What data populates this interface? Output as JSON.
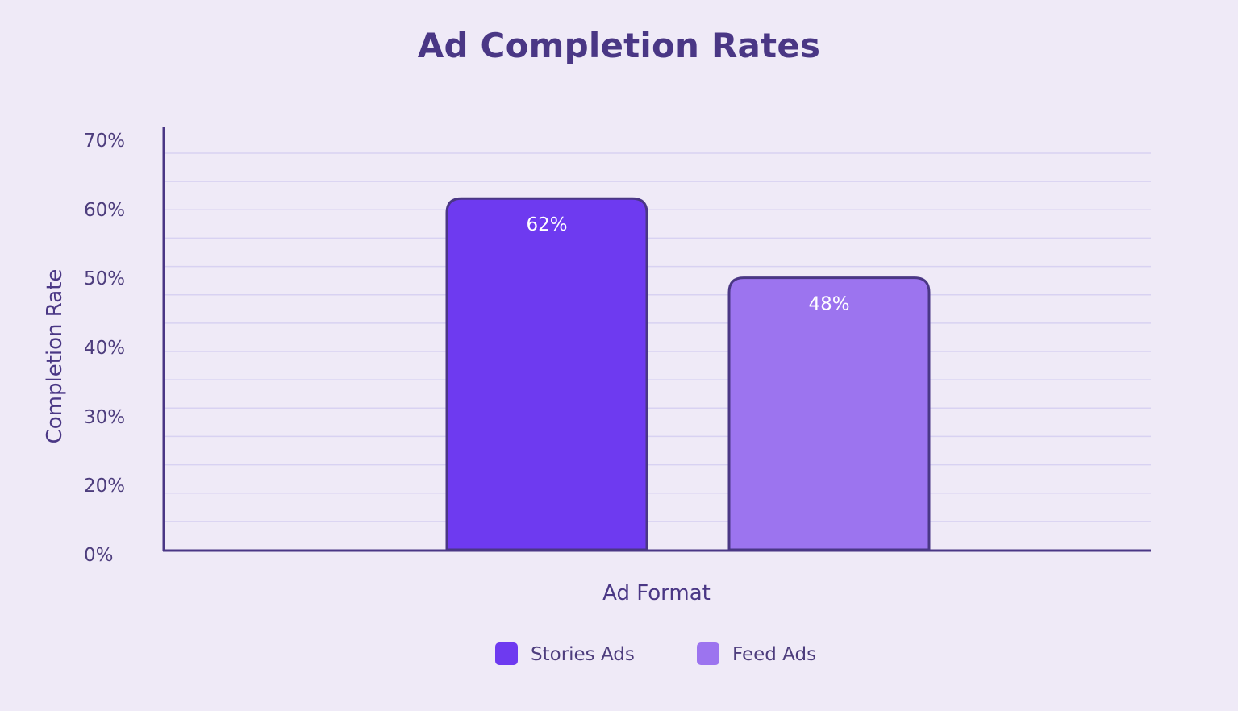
{
  "chart_data": {
    "type": "bar",
    "title": "Ad Completion Rates",
    "xlabel": "Ad Format",
    "ylabel": "Completion Rate",
    "categories": [
      "Stories Ads",
      "Feed Ads"
    ],
    "values": [
      62,
      48
    ],
    "data_labels": [
      "62%",
      "48%"
    ],
    "ylim": [
      0,
      70
    ],
    "y_ticks": [
      {
        "value": 0,
        "label": "0%"
      },
      {
        "value": 20,
        "label": "20%"
      },
      {
        "value": 30,
        "label": "30%"
      },
      {
        "value": 40,
        "label": "40%"
      },
      {
        "value": 50,
        "label": "50%"
      },
      {
        "value": 60,
        "label": "60%"
      },
      {
        "value": 70,
        "label": "70%"
      }
    ],
    "grid": true,
    "legend": {
      "position": "bottom",
      "entries": [
        "Stories Ads",
        "Feed Ads"
      ]
    },
    "colors": {
      "Stories Ads": "#6e3af0",
      "Feed Ads": "#9c74ef",
      "bar_outline": "#4a3785",
      "axis": "#4a3785",
      "grid": "#d8d2f2",
      "background": "#efeaf7"
    }
  }
}
